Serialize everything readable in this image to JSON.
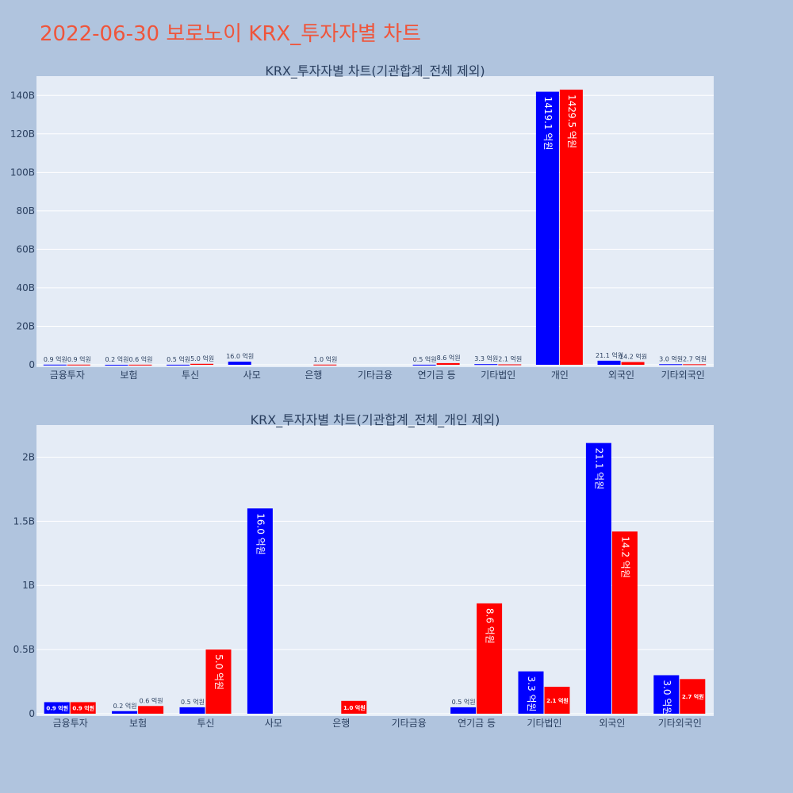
{
  "main_title": "2022-06-30 보로노이 KRX_투자자별 차트",
  "colors": {
    "buy": "#0000ff",
    "sell": "#ff0000",
    "plot_bg": "#e5ecf6",
    "page_bg": "#b0c4de",
    "title": "#ef553b"
  },
  "chart_data": [
    {
      "type": "bar",
      "title": "KRX_투자자별 차트(기관합계_전체 제외)",
      "categories": [
        "금융투자",
        "보험",
        "투신",
        "사모",
        "은행",
        "기타금융",
        "연기금 등",
        "기타법인",
        "개인",
        "외국인",
        "기타외국인"
      ],
      "ylim": [
        0,
        150000000000
      ],
      "yticks": [
        0,
        20000000000,
        40000000000,
        60000000000,
        80000000000,
        100000000000,
        120000000000,
        140000000000
      ],
      "ytick_labels": [
        "0",
        "20B",
        "40B",
        "60B",
        "80B",
        "100B",
        "120B",
        "140B"
      ],
      "grid": true,
      "series": [
        {
          "values": [
            90000000,
            20000000,
            50000000,
            1600000000,
            0,
            0,
            50000000,
            330000000,
            141910000000,
            2110000000,
            300000000
          ],
          "labels": [
            "0.9 억원",
            "0.2 억원",
            "0.5 억원",
            "16.0 억원",
            "",
            "",
            "0.5 억원",
            "3.3 억원",
            "1419.1 억원",
            "21.1 억원",
            "3.0 억원"
          ]
        },
        {
          "values": [
            90000000,
            60000000,
            500000000,
            0,
            100000000,
            0,
            860000000,
            210000000,
            142950000000,
            1420000000,
            270000000
          ],
          "labels": [
            "0.9 억원",
            "0.6 억원",
            "5.0 억원",
            "",
            "1.0 억원",
            "",
            "8.6 억원",
            "2.1 억원",
            "1429.5 억원",
            "14.2 억원",
            "2.7 억원"
          ]
        }
      ]
    },
    {
      "type": "bar",
      "title": "KRX_투자자별 차트(기관합계_전체_개인 제외)",
      "categories": [
        "금융투자",
        "보험",
        "투신",
        "사모",
        "은행",
        "기타금융",
        "연기금 등",
        "기타법인",
        "외국인",
        "기타외국인"
      ],
      "ylim": [
        0,
        2250000000
      ],
      "yticks": [
        0,
        500000000,
        1000000000,
        1500000000,
        2000000000
      ],
      "ytick_labels": [
        "0",
        "0.5B",
        "1B",
        "1.5B",
        "2B"
      ],
      "grid": true,
      "series": [
        {
          "values": [
            90000000,
            20000000,
            50000000,
            1600000000,
            0,
            0,
            50000000,
            330000000,
            2110000000,
            300000000
          ],
          "labels": [
            "0.9 억원",
            "0.2 억원",
            "0.5 억원",
            "16.0 억원",
            "",
            "",
            "0.5 억원",
            "3.3 억원",
            "21.1 억원",
            "3.0 억원"
          ]
        },
        {
          "values": [
            90000000,
            60000000,
            500000000,
            0,
            100000000,
            0,
            860000000,
            210000000,
            1420000000,
            270000000
          ],
          "labels": [
            "0.9 억원",
            "0.6 억원",
            "5.0 억원",
            "",
            "1.0 억원",
            "",
            "8.6 억원",
            "2.1 억원",
            "14.2 억원",
            "2.7 억원"
          ]
        }
      ]
    }
  ]
}
